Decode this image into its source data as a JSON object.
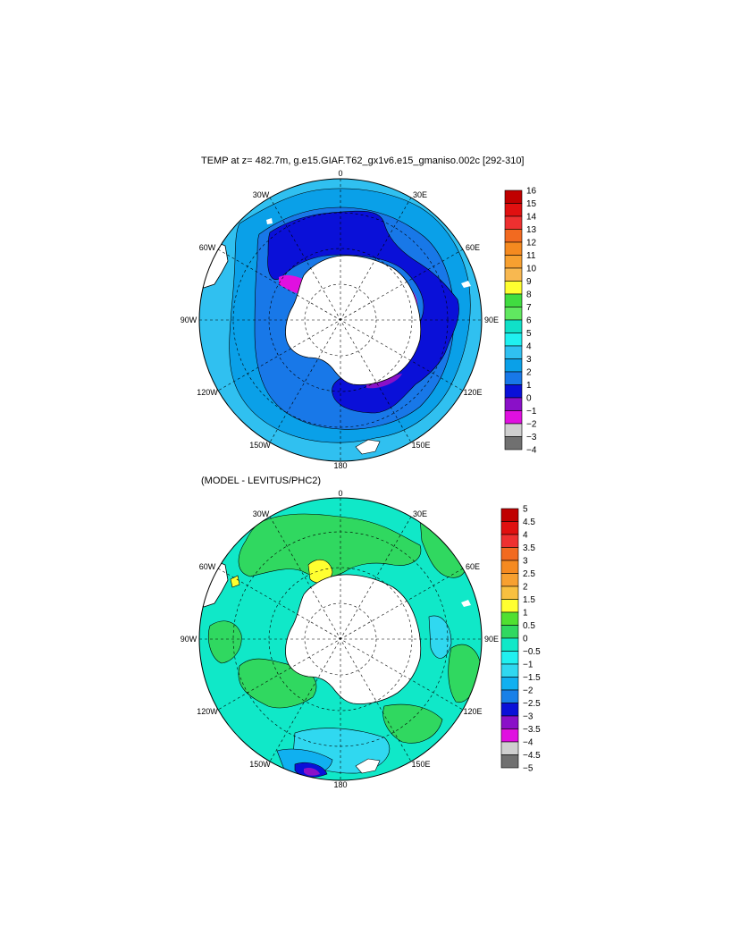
{
  "chart_data": [
    {
      "type": "heatmap",
      "projection": "south-polar-stereographic",
      "title": "TEMP at z= 482.7m, g.e15.GIAF.T62_gx1v6.e15_gmaniso.002c [292-310]",
      "longitude_labels": [
        "0",
        "30E",
        "60E",
        "90E",
        "120E",
        "150E",
        "180",
        "150W",
        "120W",
        "90W",
        "60W",
        "30W"
      ],
      "colorbar_labels": [
        "16",
        "15",
        "14",
        "13",
        "12",
        "11",
        "10",
        "9",
        "8",
        "7",
        "6",
        "5",
        "4",
        "3",
        "2",
        "1",
        "0",
        "−1",
        "−2",
        "−3",
        "−4"
      ],
      "colorbar_colors": [
        "#c00000",
        "#e01010",
        "#ee3030",
        "#f26a20",
        "#f58a20",
        "#f7a030",
        "#f8b850",
        "#ffff30",
        "#40dc40",
        "#60e860",
        "#10e0c8",
        "#20f0f0",
        "#30c0f0",
        "#0aa0e8",
        "#1878e8",
        "#0a10d8",
        "#8a10c8",
        "#e010e0",
        "#cfcfcf",
        "#707070"
      ],
      "regions": {
        "antarctica": "land",
        "ocean_background": "3 to 4",
        "polar_band": "0 to 1",
        "intermediate_band": "1 to 2",
        "outer_band": "2 to 3",
        "coastal_patches": "-2 to -1"
      }
    },
    {
      "type": "heatmap",
      "projection": "south-polar-stereographic",
      "title": "(MODEL - LEVITUS/PHC2)",
      "longitude_labels": [
        "0",
        "30E",
        "60E",
        "90E",
        "120E",
        "150E",
        "180",
        "150W",
        "120W",
        "90W",
        "60W",
        "30W"
      ],
      "colorbar_labels": [
        "5",
        "4.5",
        "4",
        "3.5",
        "3",
        "2.5",
        "2",
        "1.5",
        "1",
        "0.5",
        "0",
        "−0.5",
        "−1",
        "−1.5",
        "−2",
        "−2.5",
        "−3",
        "−3.5",
        "−4",
        "−4.5",
        "−5"
      ],
      "colorbar_colors": [
        "#c00000",
        "#e01010",
        "#ee3030",
        "#f26a20",
        "#f58a20",
        "#f7a030",
        "#f8c040",
        "#ffff30",
        "#50e030",
        "#30d860",
        "#10e8c8",
        "#20f0f0",
        "#30d8f0",
        "#10b0f0",
        "#1880e8",
        "#0a10d8",
        "#8a10c8",
        "#e010e0",
        "#cfcfcf",
        "#707070"
      ],
      "regions": {
        "antarctica": "land",
        "ocean_background": "-0.5 to 0",
        "positive_patches": "0 to 0.5",
        "warm_spot": "1 to 1.5",
        "negative_patches": "-1 to -0.5",
        "cold_spot": "-3.5 to -3"
      }
    }
  ]
}
